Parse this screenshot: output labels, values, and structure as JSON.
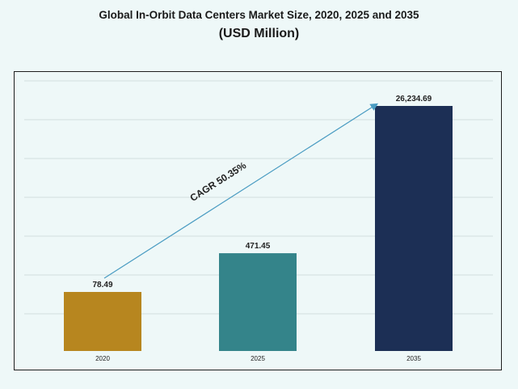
{
  "chart_data": {
    "type": "bar",
    "title": "Global In-Orbit Data Centers Market Size, 2020, 2025 and 2035",
    "subtitle": "(USD Million)",
    "categories": [
      "2020",
      "2025",
      "2035"
    ],
    "values": [
      78.49,
      471.45,
      26234.69
    ],
    "data_labels": [
      "78.49",
      "471.45",
      "26,234.69"
    ],
    "bar_colors": [
      "#b7861f",
      "#34848a",
      "#1c2f55"
    ],
    "annotation": "CAGR 50.35%",
    "xlabel": "",
    "ylabel": "",
    "grid": true,
    "legend": "none"
  }
}
